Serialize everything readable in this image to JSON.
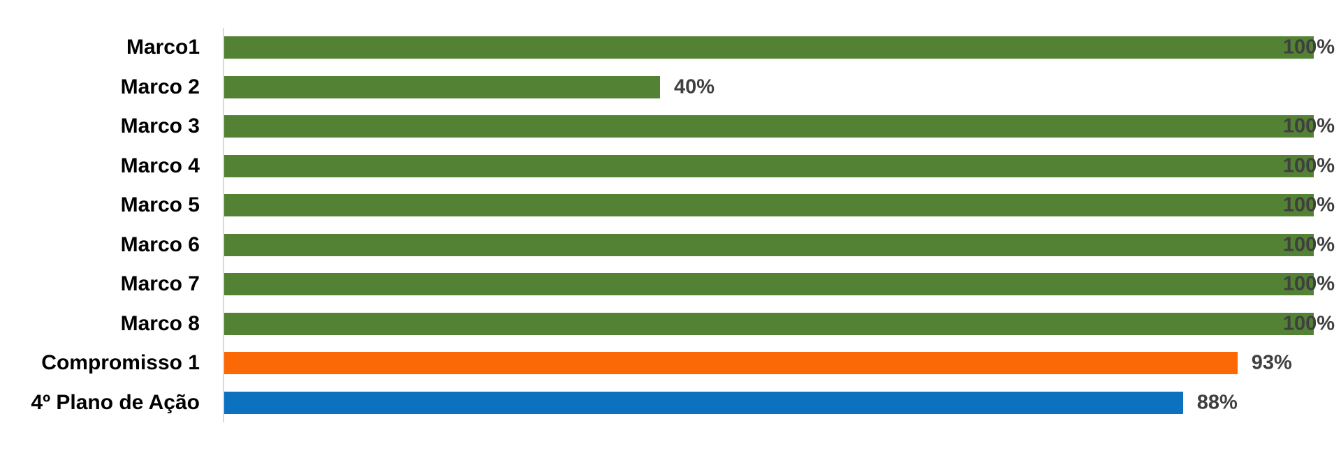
{
  "chart_data": {
    "type": "bar",
    "orientation": "horizontal",
    "title": "",
    "categories": [
      "Marco1",
      "Marco 2",
      "Marco 3",
      "Marco 4",
      "Marco 5",
      "Marco 6",
      "Marco 7",
      "Marco 8",
      "Compromisso 1",
      "4º Plano de Ação"
    ],
    "values": [
      100,
      40,
      100,
      100,
      100,
      100,
      100,
      100,
      93,
      88
    ],
    "value_labels": [
      "100%",
      "40%",
      "100%",
      "100%",
      "100%",
      "100%",
      "100%",
      "100%",
      "93%",
      "88%"
    ],
    "bar_colors": [
      "#548235",
      "#548235",
      "#548235",
      "#548235",
      "#548235",
      "#548235",
      "#548235",
      "#548235",
      "#FB6906",
      "#0C72C0"
    ],
    "xlabel": "",
    "ylabel": "",
    "xlim": [
      0,
      100
    ],
    "grid": false,
    "legend": false,
    "data_label_position": "outside-end",
    "colors": {
      "green": "#548235",
      "orange": "#FB6906",
      "blue": "#0C72C0",
      "axis_line": "#D9D9D9",
      "value_label": "#3F3F3F",
      "category_label": "#000000",
      "background": "#FFFFFF"
    }
  }
}
